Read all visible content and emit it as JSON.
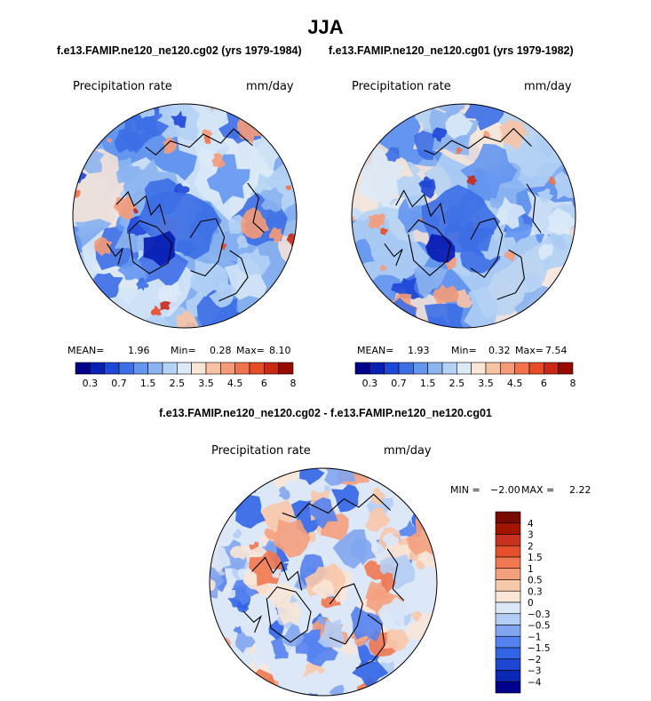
{
  "figure": {
    "title": "JJA",
    "case_a_title": "f.e13.FAMIP.ne120_ne120.cg02 (yrs 1979-1984)",
    "case_b_title": "f.e13.FAMIP.ne120_ne120.cg01 (yrs 1979-1982)",
    "diff_title": "f.e13.FAMIP.ne120_ne120.cg02 - f.e13.FAMIP.ne120_ne120.cg01"
  },
  "colors": {
    "precip_levels": [
      "#00008c",
      "#0a1fb4",
      "#1e46d7",
      "#3c6ee6",
      "#6496f0",
      "#8cb4f0",
      "#b4d2f5",
      "#dceaf8",
      "#fae6d7",
      "#f8c3a5",
      "#f59b78",
      "#f0734b",
      "#e64b28",
      "#c82814",
      "#960a00"
    ],
    "diff_levels": [
      "#00008c",
      "#0a28b4",
      "#1e46d2",
      "#3264e6",
      "#5582f0",
      "#82a5f0",
      "#b4cdf5",
      "#dce8f8",
      "#fae6d7",
      "#f8c8aa",
      "#f5a07d",
      "#f07850",
      "#e6502d",
      "#c8321e",
      "#a01400",
      "#780a00"
    ],
    "coastline": "#000000",
    "ocean_bg": "#3c6ee6"
  },
  "chart_data": [
    {
      "type": "heatmap",
      "projection": "north-polar-stereographic",
      "variable": "Precipitation rate",
      "units": "mm/day",
      "case": "f.e13.FAMIP.ne120_ne120.cg02 (yrs 1979-1984)",
      "mean_label": "MEAN=",
      "mean": "1.96",
      "min_label": "Min=",
      "min": "0.28",
      "max_label": "Max=",
      "max": "8.10",
      "contour_levels": [
        0.2,
        0.3,
        0.5,
        0.7,
        1,
        1.5,
        2,
        2.5,
        3,
        3.5,
        4,
        4.5,
        5,
        6,
        7,
        8
      ],
      "colorbar_tick_labels": [
        "0.3",
        "0.7",
        "1.5",
        "2.5",
        "3.5",
        "4.5",
        "6",
        "8"
      ]
    },
    {
      "type": "heatmap",
      "projection": "north-polar-stereographic",
      "variable": "Precipitation rate",
      "units": "mm/day",
      "case": "f.e13.FAMIP.ne120_ne120.cg01 (yrs 1979-1982)",
      "mean_label": "MEAN=",
      "mean": "1.93",
      "min_label": "Min=",
      "min": "0.32",
      "max_label": "Max=",
      "max": "7.54",
      "contour_levels": [
        0.2,
        0.3,
        0.5,
        0.7,
        1,
        1.5,
        2,
        2.5,
        3,
        3.5,
        4,
        4.5,
        5,
        6,
        7,
        8
      ],
      "colorbar_tick_labels": [
        "0.3",
        "0.7",
        "1.5",
        "2.5",
        "3.5",
        "4.5",
        "6",
        "8"
      ]
    },
    {
      "type": "heatmap",
      "projection": "north-polar-stereographic",
      "variable": "Precipitation rate",
      "units": "mm/day",
      "case": "f.e13.FAMIP.ne120_ne120.cg02 - f.e13.FAMIP.ne120_ne120.cg01",
      "min_label": "MIN =",
      "min": "−2.00",
      "max_label": "MAX =",
      "max": "2.22",
      "colorbar_tick_labels": [
        "4",
        "3",
        "2",
        "1.5",
        "1",
        "0.5",
        "0.3",
        "0",
        "−0.3",
        "−0.5",
        "−1",
        "−1.5",
        "−2",
        "−3",
        "−4"
      ]
    }
  ]
}
